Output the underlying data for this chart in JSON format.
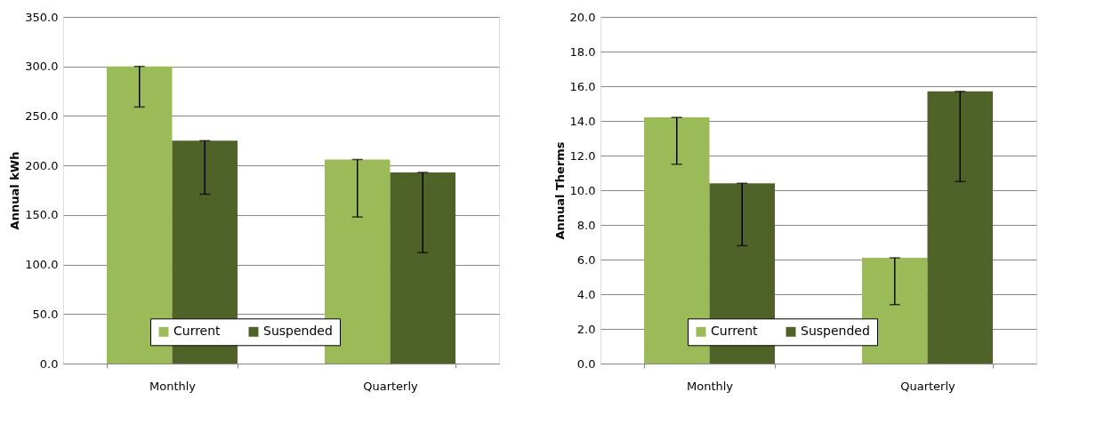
{
  "chart_data": [
    {
      "type": "bar",
      "ylabel": "Annual kWh",
      "categories": [
        "Monthly",
        "Quarterly"
      ],
      "series": [
        {
          "name": "Current",
          "color": "#9bbb59",
          "values": [
            300,
            206
          ],
          "errors": [
            [
              259,
              300
            ],
            [
              148,
              206
            ]
          ]
        },
        {
          "name": "Suspended",
          "color": "#4f6228",
          "values": [
            225,
            193
          ],
          "errors": [
            [
              171,
              225
            ],
            [
              112,
              193
            ]
          ]
        }
      ],
      "ylim": [
        0,
        350
      ],
      "yticks": [
        {
          "value": 0,
          "label": "0.0"
        },
        {
          "value": 50,
          "label": "50.0"
        },
        {
          "value": 100,
          "label": "100.0"
        },
        {
          "value": 150,
          "label": "150.0"
        },
        {
          "value": 200,
          "label": "200.0"
        },
        {
          "value": 250,
          "label": "250.0"
        },
        {
          "value": 300,
          "label": "300.0"
        },
        {
          "value": 350,
          "label": "350.0"
        }
      ],
      "grid": "y",
      "legend": "bottom"
    },
    {
      "type": "bar",
      "ylabel": "Annual Therms",
      "categories": [
        "Monthly",
        "Quarterly"
      ],
      "series": [
        {
          "name": "Current",
          "color": "#9bbb59",
          "values": [
            14.2,
            6.1
          ],
          "errors": [
            [
              11.5,
              14.2
            ],
            [
              3.4,
              6.1
            ]
          ]
        },
        {
          "name": "Suspended",
          "color": "#4f6228",
          "values": [
            10.4,
            15.7
          ],
          "errors": [
            [
              6.8,
              10.4
            ],
            [
              10.5,
              15.7
            ]
          ]
        }
      ],
      "ylim": [
        0,
        20
      ],
      "yticks": [
        {
          "value": 0,
          "label": "0.0"
        },
        {
          "value": 2,
          "label": "2.0"
        },
        {
          "value": 4,
          "label": "4.0"
        },
        {
          "value": 6,
          "label": "6.0"
        },
        {
          "value": 8,
          "label": "8.0"
        },
        {
          "value": 10,
          "label": "10.0"
        },
        {
          "value": 12,
          "label": "12.0"
        },
        {
          "value": 14,
          "label": "14.0"
        },
        {
          "value": 16,
          "label": "16.0"
        },
        {
          "value": 18,
          "label": "18.0"
        },
        {
          "value": 20,
          "label": "20.0"
        }
      ],
      "grid": "y",
      "legend": "bottom"
    }
  ]
}
